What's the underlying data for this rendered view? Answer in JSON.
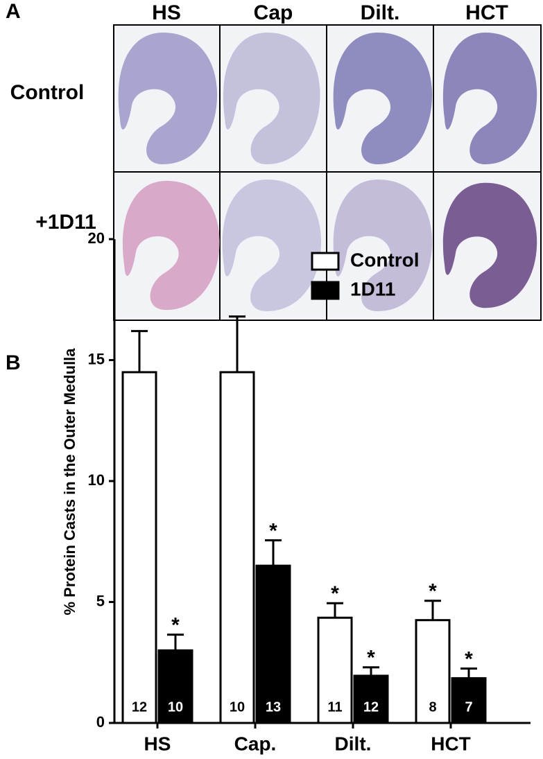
{
  "panel_labels": [
    "A",
    "B"
  ],
  "images": {
    "columns": [
      "HS",
      "Cap",
      "Dilt.",
      "HCT"
    ],
    "rows": [
      "Control",
      "+1D11"
    ]
  },
  "chart_data": {
    "type": "bar",
    "y_label": "% Protein Casts in the Outer Medulla",
    "categories": [
      "HS",
      "Cap.",
      "Dilt.",
      "HCT"
    ],
    "series": [
      {
        "name": "Control",
        "color": "#ffffff",
        "values": [
          14.5,
          14.5,
          4.35,
          4.25
        ],
        "errors": [
          1.7,
          2.3,
          0.6,
          0.8
        ],
        "n": [
          "12",
          "10",
          "11",
          "8"
        ],
        "significance": [
          null,
          null,
          "*",
          "*"
        ]
      },
      {
        "name": "1D11",
        "color": "#000000",
        "values": [
          3.0,
          6.5,
          1.95,
          1.85
        ],
        "errors": [
          0.65,
          1.05,
          0.35,
          0.4
        ],
        "n": [
          "10",
          "13",
          "12",
          "7"
        ],
        "significance": [
          "*",
          "*",
          "*",
          "*"
        ]
      }
    ],
    "ylim": [
      0,
      20
    ],
    "yticks": [
      0,
      5,
      10,
      15,
      20
    ],
    "legend": "upper right"
  }
}
